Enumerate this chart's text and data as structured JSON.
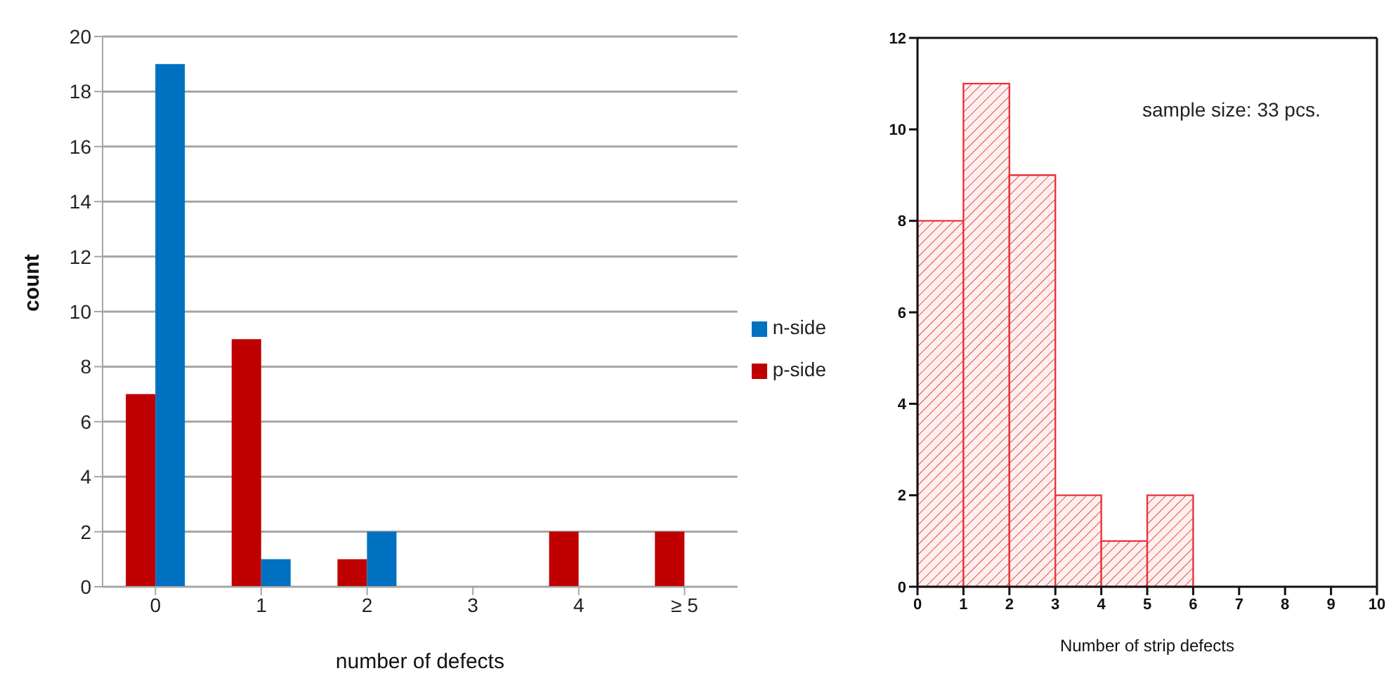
{
  "chart_data": [
    {
      "type": "bar",
      "xlabel": "number of defects",
      "ylabel": "count",
      "categories": [
        "0",
        "1",
        "2",
        "3",
        "4",
        "≥ 5"
      ],
      "series": [
        {
          "name": "p-side",
          "color": "#c00000",
          "values": [
            7,
            9,
            1,
            0,
            2,
            2
          ]
        },
        {
          "name": "n-side",
          "color": "#0070c0",
          "values": [
            19,
            1,
            2,
            0,
            0,
            0
          ]
        }
      ],
      "ylim": [
        0,
        20
      ],
      "yticks": [
        0,
        2,
        4,
        6,
        8,
        10,
        12,
        14,
        16,
        18,
        20
      ],
      "grid": "y",
      "legend": "right"
    },
    {
      "type": "histogram",
      "xlabel": "Number of strip defects",
      "bins": [
        0,
        1,
        2,
        3,
        4,
        5,
        6
      ],
      "values": [
        8,
        11,
        9,
        2,
        1,
        2
      ],
      "color": "#e8353b",
      "xlim": [
        0,
        10
      ],
      "xticks": [
        0,
        1,
        2,
        3,
        4,
        5,
        6,
        7,
        8,
        9,
        10
      ],
      "ylim": [
        0,
        12
      ],
      "yticks": [
        0,
        2,
        4,
        6,
        8,
        10,
        12
      ],
      "grid": false,
      "annotations": [
        "sample size: 33 pcs."
      ]
    }
  ]
}
